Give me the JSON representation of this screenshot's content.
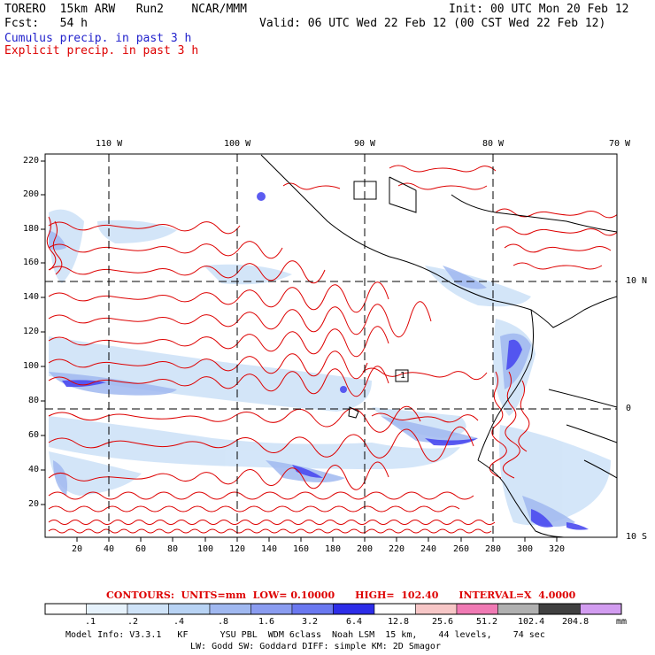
{
  "header": {
    "line1_left": "TORERO  15km ARW   Run2    NCAR/MMM",
    "line1_right": "Init: 00 UTC Mon 20 Feb 12",
    "line2_left": "Fcst:   54 h",
    "line2_right": "Valid: 06 UTC Wed 22 Feb 12 (00 CST Wed 22 Feb 12)",
    "legend_cumulus": "Cumulus precip. in past 3 h",
    "legend_explicit": "Explicit precip. in past 3 h"
  },
  "map": {
    "top_lon_labels": [
      "110 W",
      "100 W",
      "90 W",
      "80 W",
      "70 W"
    ],
    "right_lat_labels": [
      "10 N",
      "0",
      "10 S"
    ],
    "bottom_grid_labels": [
      "20",
      "40",
      "60",
      "80",
      "100",
      "120",
      "140",
      "160",
      "180",
      "200",
      "220",
      "240",
      "260",
      "280",
      "300",
      "320"
    ],
    "left_grid_labels": [
      "220",
      "200",
      "180",
      "160",
      "140",
      "120",
      "100",
      "80",
      "60",
      "40",
      "20"
    ],
    "marker_label": "1"
  },
  "contours": {
    "label": "CONTOURS:  UNITS=mm  LOW= 0.10000      HIGH=  102.40      INTERVAL=X  4.0000"
  },
  "colorbar": {
    "colors": [
      "#ffffff",
      "#e6f2fc",
      "#cfe3f8",
      "#b8d3f4",
      "#a0b8f0",
      "#8a9cf0",
      "#6a78f0",
      "#2d2de8",
      "#ffffff",
      "#f7c7c7",
      "#f07ab4",
      "#b0b0b0",
      "#404040",
      "#d29cf0"
    ],
    "labels": [
      ".1",
      ".2",
      ".4",
      ".8",
      "1.6",
      "3.2",
      "6.4",
      "12.8",
      "25.6",
      "51.2",
      "102.4",
      "204.8"
    ],
    "units": "mm"
  },
  "footer": {
    "line1": "Model Info: V3.3.1   KF      YSU PBL  WDM 6class  Noah LSM  15 km,    44 levels,    74 sec",
    "line2": "LW: Godd SW: Goddard DIFF: simple KM: 2D Smagor"
  }
}
